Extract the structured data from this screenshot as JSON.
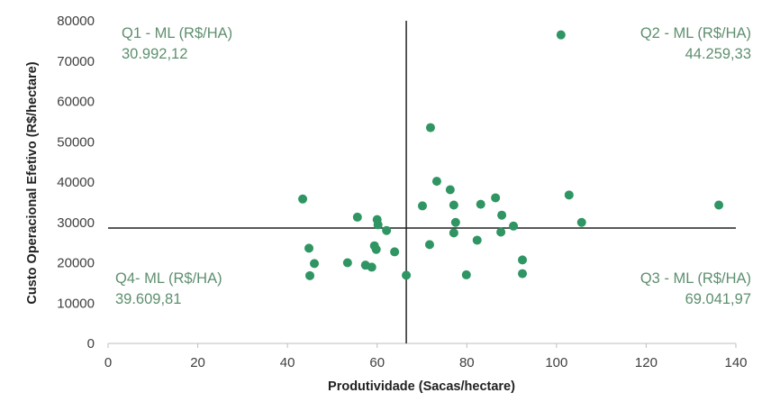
{
  "chart_data": {
    "type": "scatter",
    "xlabel": "Produtividade (Sacas/hectare)",
    "ylabel": "Custo Operacional Efetivo (R$/hectare)",
    "xlim": [
      0,
      140
    ],
    "ylim": [
      0,
      80000
    ],
    "xticks": [
      0,
      20,
      40,
      60,
      80,
      100,
      120,
      140
    ],
    "yticks": [
      0,
      10000,
      20000,
      30000,
      40000,
      50000,
      60000,
      70000,
      80000
    ],
    "grid": false,
    "point_color": "#2e9563",
    "reference_lines": {
      "x": 66.5,
      "y": 28600
    },
    "quadrants": {
      "q1": {
        "label": "Q1 - ML (R$/HA)",
        "value": "30.992,12"
      },
      "q2": {
        "label": "Q2 - ML (R$/HA)",
        "value": "44.259,33"
      },
      "q3": {
        "label": "Q3 - ML (R$/HA)",
        "value": "69.041,97"
      },
      "q4": {
        "label": "Q4- ML (R$/HA)",
        "value": "39.609,81"
      }
    },
    "points": [
      [
        43.4,
        35800
      ],
      [
        45.0,
        16800
      ],
      [
        44.8,
        23600
      ],
      [
        46.0,
        19800
      ],
      [
        55.6,
        31300
      ],
      [
        53.4,
        20000
      ],
      [
        57.4,
        19400
      ],
      [
        58.8,
        18900
      ],
      [
        60.0,
        30700
      ],
      [
        60.2,
        29400
      ],
      [
        59.4,
        24200
      ],
      [
        59.8,
        23300
      ],
      [
        62.1,
        28000
      ],
      [
        63.9,
        22700
      ],
      [
        66.5,
        16900
      ],
      [
        71.9,
        53500
      ],
      [
        73.3,
        40200
      ],
      [
        70.1,
        34100
      ],
      [
        71.7,
        24500
      ],
      [
        76.3,
        38100
      ],
      [
        77.1,
        34300
      ],
      [
        77.5,
        30000
      ],
      [
        77.1,
        27400
      ],
      [
        79.9,
        17000
      ],
      [
        83.1,
        34500
      ],
      [
        82.3,
        25600
      ],
      [
        86.4,
        36100
      ],
      [
        87.8,
        31800
      ],
      [
        87.6,
        27600
      ],
      [
        90.4,
        29100
      ],
      [
        92.4,
        20700
      ],
      [
        92.4,
        17300
      ],
      [
        101.0,
        76500
      ],
      [
        102.8,
        36800
      ],
      [
        105.6,
        30000
      ],
      [
        136.2,
        34300
      ]
    ]
  }
}
